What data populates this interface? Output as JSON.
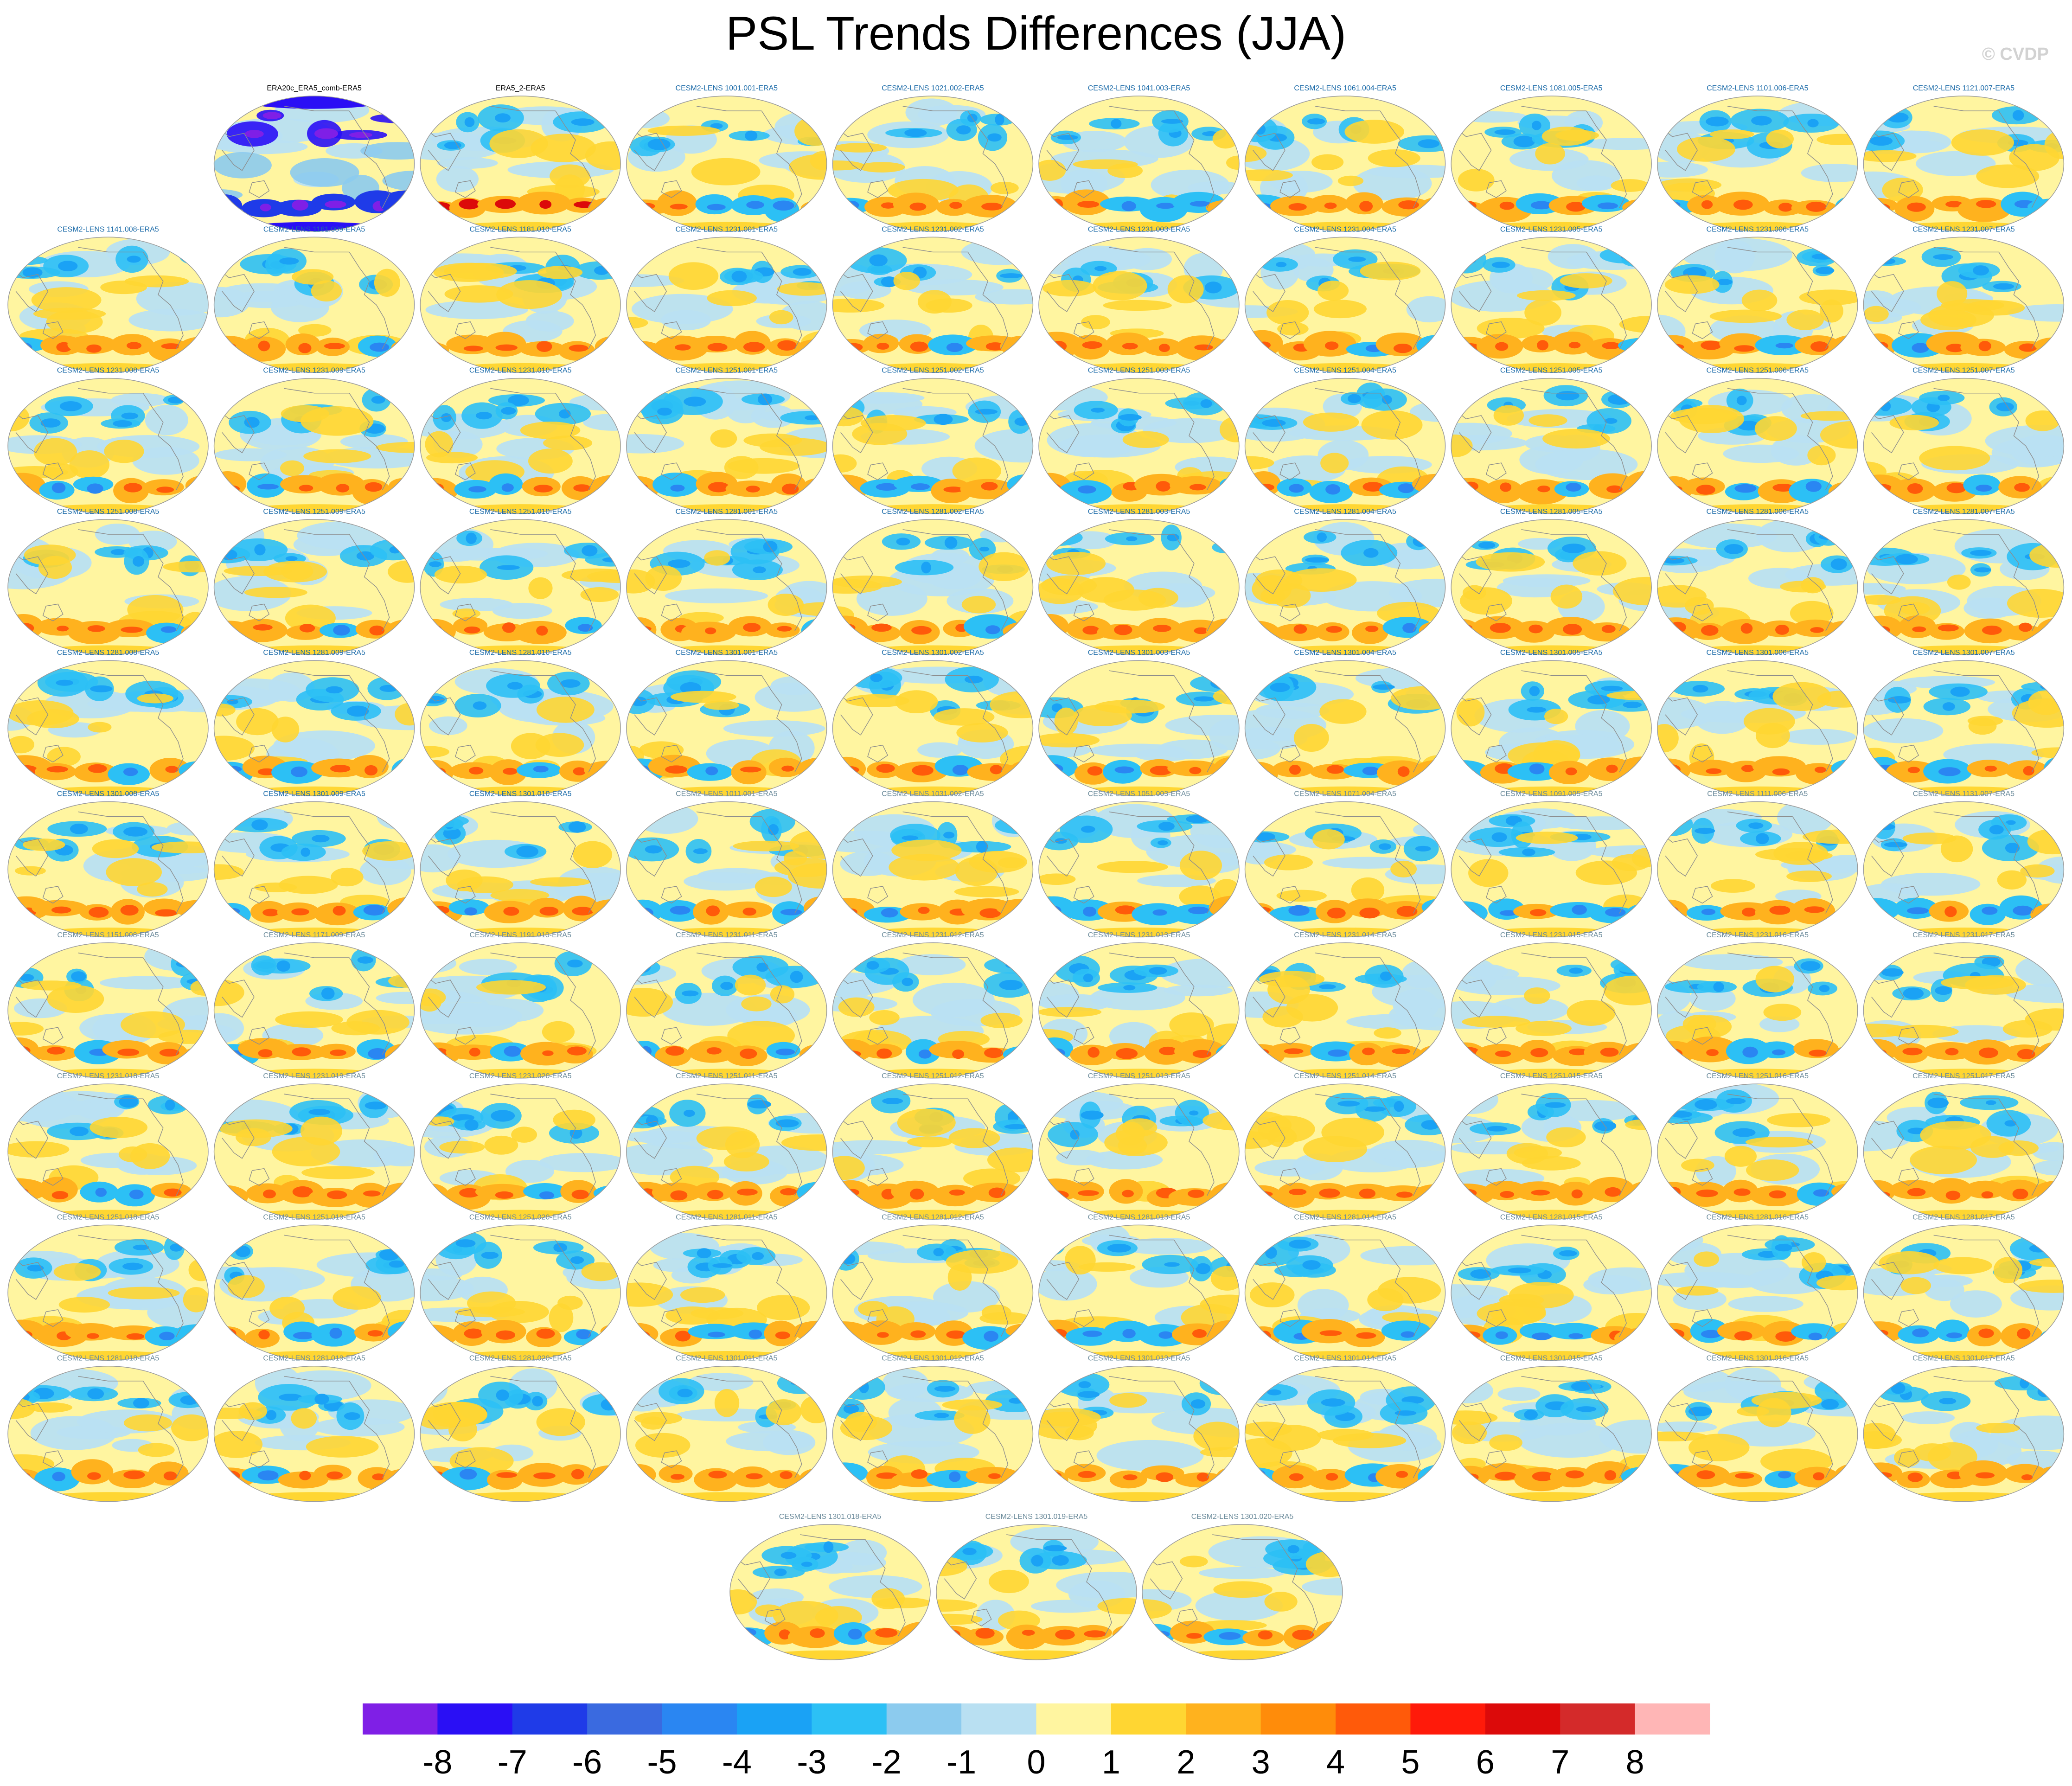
{
  "title": "PSL Trends Differences (JJA)",
  "credit": "© CVDP",
  "chart_data": {
    "type": "heatmap",
    "title": "PSL Trends Differences (JJA)",
    "description_free": true,
    "panels": [
      {
        "label": "ERA20c_ERA5_comb-ERA5",
        "color": "#000000"
      },
      {
        "label": "ERA5_2-ERA5",
        "color": "#000000"
      },
      {
        "label": "CESM2-LENS 1001.001-ERA5",
        "color": "#1a6aa8"
      },
      {
        "label": "CESM2-LENS 1021.002-ERA5",
        "color": "#1a6aa8"
      },
      {
        "label": "CESM2-LENS 1041.003-ERA5",
        "color": "#1a6aa8"
      },
      {
        "label": "CESM2-LENS 1061.004-ERA5",
        "color": "#1a6aa8"
      },
      {
        "label": "CESM2-LENS 1081.005-ERA5",
        "color": "#1a6aa8"
      },
      {
        "label": "CESM2-LENS 1101.006-ERA5",
        "color": "#1a6aa8"
      },
      {
        "label": "CESM2-LENS 1121.007-ERA5",
        "color": "#1a6aa8"
      },
      {
        "label": "CESM2-LENS 1141.008-ERA5",
        "color": "#1a6aa8"
      },
      {
        "label": "CESM2-LENS 1161.009-ERA5",
        "color": "#1a6aa8"
      },
      {
        "label": "CESM2-LENS 1181.010-ERA5",
        "color": "#1a6aa8"
      },
      {
        "label": "CESM2-LENS 1231.001-ERA5",
        "color": "#1a6aa8"
      },
      {
        "label": "CESM2-LENS 1231.002-ERA5",
        "color": "#1a6aa8"
      },
      {
        "label": "CESM2-LENS 1231.003-ERA5",
        "color": "#1a6aa8"
      },
      {
        "label": "CESM2-LENS 1231.004-ERA5",
        "color": "#1a6aa8"
      },
      {
        "label": "CESM2-LENS 1231.005-ERA5",
        "color": "#1a6aa8"
      },
      {
        "label": "CESM2-LENS 1231.006-ERA5",
        "color": "#1a6aa8"
      },
      {
        "label": "CESM2-LENS 1231.007-ERA5",
        "color": "#1a6aa8"
      },
      {
        "label": "CESM2-LENS 1231.008-ERA5",
        "color": "#1a6aa8"
      },
      {
        "label": "CESM2-LENS 1231.009-ERA5",
        "color": "#1a6aa8"
      },
      {
        "label": "CESM2-LENS 1231.010-ERA5",
        "color": "#1a6aa8"
      },
      {
        "label": "CESM2-LENS 1251.001-ERA5",
        "color": "#1a6aa8"
      },
      {
        "label": "CESM2-LENS 1251.002-ERA5",
        "color": "#1a6aa8"
      },
      {
        "label": "CESM2-LENS 1251.003-ERA5",
        "color": "#1a6aa8"
      },
      {
        "label": "CESM2-LENS 1251.004-ERA5",
        "color": "#1a6aa8"
      },
      {
        "label": "CESM2-LENS 1251.005-ERA5",
        "color": "#1a6aa8"
      },
      {
        "label": "CESM2-LENS 1251.006-ERA5",
        "color": "#1a6aa8"
      },
      {
        "label": "CESM2-LENS 1251.007-ERA5",
        "color": "#1a6aa8"
      },
      {
        "label": "CESM2-LENS 1251.008-ERA5",
        "color": "#1a6aa8"
      },
      {
        "label": "CESM2-LENS 1251.009-ERA5",
        "color": "#1a6aa8"
      },
      {
        "label": "CESM2-LENS 1251.010-ERA5",
        "color": "#1a6aa8"
      },
      {
        "label": "CESM2-LENS 1281.001-ERA5",
        "color": "#1a6aa8"
      },
      {
        "label": "CESM2-LENS 1281.002-ERA5",
        "color": "#1a6aa8"
      },
      {
        "label": "CESM2-LENS 1281.003-ERA5",
        "color": "#1a6aa8"
      },
      {
        "label": "CESM2-LENS 1281.004-ERA5",
        "color": "#1a6aa8"
      },
      {
        "label": "CESM2-LENS 1281.005-ERA5",
        "color": "#1a6aa8"
      },
      {
        "label": "CESM2-LENS 1281.006-ERA5",
        "color": "#1a6aa8"
      },
      {
        "label": "CESM2-LENS 1281.007-ERA5",
        "color": "#1a6aa8"
      },
      {
        "label": "CESM2-LENS 1281.008-ERA5",
        "color": "#1a6aa8"
      },
      {
        "label": "CESM2-LENS 1281.009-ERA5",
        "color": "#1a6aa8"
      },
      {
        "label": "CESM2-LENS 1281.010-ERA5",
        "color": "#1a6aa8"
      },
      {
        "label": "CESM2-LENS 1301.001-ERA5",
        "color": "#1a6aa8"
      },
      {
        "label": "CESM2-LENS 1301.002-ERA5",
        "color": "#1a6aa8"
      },
      {
        "label": "CESM2-LENS 1301.003-ERA5",
        "color": "#1a6aa8"
      },
      {
        "label": "CESM2-LENS 1301.004-ERA5",
        "color": "#1a6aa8"
      },
      {
        "label": "CESM2-LENS 1301.005-ERA5",
        "color": "#1a6aa8"
      },
      {
        "label": "CESM2-LENS 1301.006-ERA5",
        "color": "#1a6aa8"
      },
      {
        "label": "CESM2-LENS 1301.007-ERA5",
        "color": "#1a6aa8"
      },
      {
        "label": "CESM2-LENS 1301.008-ERA5",
        "color": "#1a6aa8"
      },
      {
        "label": "CESM2-LENS 1301.009-ERA5",
        "color": "#1a6aa8"
      },
      {
        "label": "CESM2-LENS 1301.010-ERA5",
        "color": "#1a6aa8"
      },
      {
        "label": "CESM2-LENS 1011.001-ERA5",
        "color": "#6a8a9a"
      },
      {
        "label": "CESM2-LENS 1031.002-ERA5",
        "color": "#6a8a9a"
      },
      {
        "label": "CESM2-LENS 1051.003-ERA5",
        "color": "#6a8a9a"
      },
      {
        "label": "CESM2-LENS 1071.004-ERA5",
        "color": "#6a8a9a"
      },
      {
        "label": "CESM2-LENS 1091.005-ERA5",
        "color": "#6a8a9a"
      },
      {
        "label": "CESM2-LENS 1111.006-ERA5",
        "color": "#6a8a9a"
      },
      {
        "label": "CESM2-LENS 1131.007-ERA5",
        "color": "#6a8a9a"
      },
      {
        "label": "CESM2-LENS 1151.008-ERA5",
        "color": "#6a8a9a"
      },
      {
        "label": "CESM2-LENS 1171.009-ERA5",
        "color": "#6a8a9a"
      },
      {
        "label": "CESM2-LENS 1191.010-ERA5",
        "color": "#6a8a9a"
      },
      {
        "label": "CESM2-LENS 1231.011-ERA5",
        "color": "#6a8a9a"
      },
      {
        "label": "CESM2-LENS 1231.012-ERA5",
        "color": "#6a8a9a"
      },
      {
        "label": "CESM2-LENS 1231.013-ERA5",
        "color": "#6a8a9a"
      },
      {
        "label": "CESM2-LENS 1231.014-ERA5",
        "color": "#6a8a9a"
      },
      {
        "label": "CESM2-LENS 1231.015-ERA5",
        "color": "#6a8a9a"
      },
      {
        "label": "CESM2-LENS 1231.016-ERA5",
        "color": "#6a8a9a"
      },
      {
        "label": "CESM2-LENS 1231.017-ERA5",
        "color": "#6a8a9a"
      },
      {
        "label": "CESM2-LENS 1231.018-ERA5",
        "color": "#6a8a9a"
      },
      {
        "label": "CESM2-LENS 1231.019-ERA5",
        "color": "#6a8a9a"
      },
      {
        "label": "CESM2-LENS 1231.020-ERA5",
        "color": "#6a8a9a"
      },
      {
        "label": "CESM2-LENS 1251.011-ERA5",
        "color": "#6a8a9a"
      },
      {
        "label": "CESM2-LENS 1251.012-ERA5",
        "color": "#6a8a9a"
      },
      {
        "label": "CESM2-LENS 1251.013-ERA5",
        "color": "#6a8a9a"
      },
      {
        "label": "CESM2-LENS 1251.014-ERA5",
        "color": "#6a8a9a"
      },
      {
        "label": "CESM2-LENS 1251.015-ERA5",
        "color": "#6a8a9a"
      },
      {
        "label": "CESM2-LENS 1251.016-ERA5",
        "color": "#6a8a9a"
      },
      {
        "label": "CESM2-LENS 1251.017-ERA5",
        "color": "#6a8a9a"
      },
      {
        "label": "CESM2-LENS 1251.018-ERA5",
        "color": "#6a8a9a"
      },
      {
        "label": "CESM2-LENS 1251.019-ERA5",
        "color": "#6a8a9a"
      },
      {
        "label": "CESM2-LENS 1251.020-ERA5",
        "color": "#6a8a9a"
      },
      {
        "label": "CESM2-LENS 1281.011-ERA5",
        "color": "#6a8a9a"
      },
      {
        "label": "CESM2-LENS 1281.012-ERA5",
        "color": "#6a8a9a"
      },
      {
        "label": "CESM2-LENS 1281.013-ERA5",
        "color": "#6a8a9a"
      },
      {
        "label": "CESM2-LENS 1281.014-ERA5",
        "color": "#6a8a9a"
      },
      {
        "label": "CESM2-LENS 1281.015-ERA5",
        "color": "#6a8a9a"
      },
      {
        "label": "CESM2-LENS 1281.016-ERA5",
        "color": "#6a8a9a"
      },
      {
        "label": "CESM2-LENS 1281.017-ERA5",
        "color": "#6a8a9a"
      },
      {
        "label": "CESM2-LENS 1281.018-ERA5",
        "color": "#6a8a9a"
      },
      {
        "label": "CESM2-LENS 1281.019-ERA5",
        "color": "#6a8a9a"
      },
      {
        "label": "CESM2-LENS 1281.020-ERA5",
        "color": "#6a8a9a"
      },
      {
        "label": "CESM2-LENS 1301.011-ERA5",
        "color": "#6a8a9a"
      },
      {
        "label": "CESM2-LENS 1301.012-ERA5",
        "color": "#6a8a9a"
      },
      {
        "label": "CESM2-LENS 1301.013-ERA5",
        "color": "#6a8a9a"
      },
      {
        "label": "CESM2-LENS 1301.014-ERA5",
        "color": "#6a8a9a"
      },
      {
        "label": "CESM2-LENS 1301.015-ERA5",
        "color": "#6a8a9a"
      },
      {
        "label": "CESM2-LENS 1301.016-ERA5",
        "color": "#6a8a9a"
      },
      {
        "label": "CESM2-LENS 1301.017-ERA5",
        "color": "#6a8a9a"
      },
      {
        "label": "CESM2-LENS 1301.018-ERA5",
        "color": "#6a8a9a"
      },
      {
        "label": "CESM2-LENS 1301.019-ERA5",
        "color": "#6a8a9a"
      },
      {
        "label": "CESM2-LENS 1301.020-ERA5",
        "color": "#6a8a9a"
      }
    ],
    "colorbar": {
      "levels": [
        "-8",
        "-7",
        "-6",
        "-5",
        "-4",
        "-3",
        "-2",
        "-1",
        "0",
        "1",
        "2",
        "3",
        "4",
        "5",
        "6",
        "7",
        "8"
      ],
      "colors": [
        "#7f1fe6",
        "#2a0ff5",
        "#1f3be8",
        "#3a6ae0",
        "#2a86f2",
        "#1aa2f5",
        "#2cc0f5",
        "#8ccbee",
        "#b9e0f2",
        "#fff5a0",
        "#ffd632",
        "#ffb21e",
        "#ff8c0a",
        "#ff5a0a",
        "#ff1a0a",
        "#dc0a0a",
        "#d42a2a",
        "#ffb6b6"
      ]
    }
  }
}
